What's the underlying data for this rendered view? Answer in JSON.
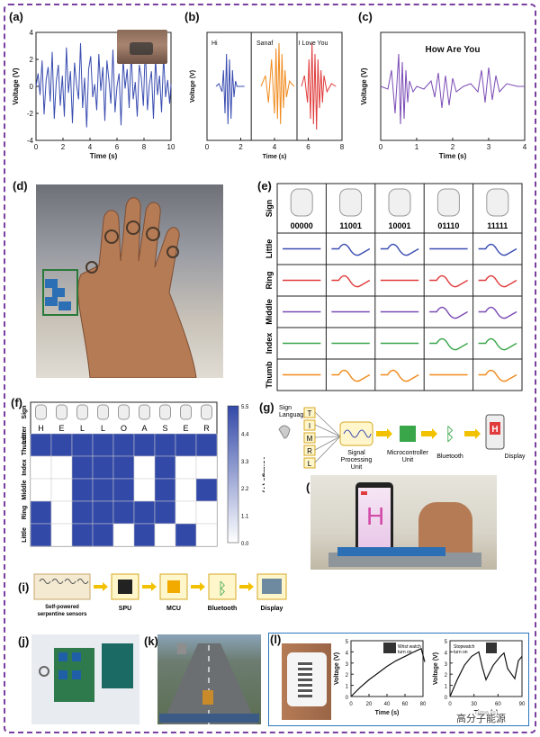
{
  "panels": {
    "a": {
      "label": "(a)"
    },
    "b": {
      "label": "(b)",
      "subtitles": [
        "Hi",
        "Sanaf",
        "I Love You"
      ]
    },
    "c": {
      "label": "(c)",
      "subtitle": "How Are You"
    },
    "d": {
      "label": "(d)"
    },
    "e": {
      "label": "(e)",
      "row_labels": [
        "Sign",
        "Little",
        "Ring",
        "Middle",
        "Index",
        "Thumb"
      ],
      "codes": [
        "00000",
        "11001",
        "10001",
        "01110",
        "11111"
      ]
    },
    "f": {
      "label": "(f)",
      "row_labels": [
        "Sign",
        "Letter",
        "Thumb",
        "Index",
        "Middle",
        "Ring",
        "Little"
      ],
      "letters": [
        "H",
        "E",
        "L",
        "L",
        "O",
        "A",
        "S",
        "E",
        "R"
      ],
      "colorbar_label": "Voltage (V)",
      "colorbar_ticks": [
        "5.5",
        "4.4",
        "3.3",
        "2.2",
        "1.1",
        "0.0"
      ]
    },
    "g": {
      "label": "(g)",
      "sign_language": "Sign\nLanguage",
      "finger_letters": [
        "T",
        "I",
        "M",
        "R",
        "L"
      ],
      "spu": "Signal\nProcessing\nUnit",
      "mcu": "Microcontroller\nUnit",
      "bluetooth": "Bluetooth",
      "display": "Display",
      "display_letter": "H"
    },
    "h": {
      "label": "(h)",
      "display_letter": "H"
    },
    "i": {
      "label": "(i)",
      "blocks": [
        "Self-powered\nserpentine sensors",
        "SPU",
        "MCU",
        "Bluetooth",
        "Display"
      ]
    },
    "j": {
      "label": "(j)"
    },
    "k": {
      "label": "(k)"
    },
    "l": {
      "label": "(l)",
      "annot1": "Wrist watch\nturn on",
      "annot2": "Stopwatch\nturn on"
    }
  },
  "watermark": "高分子能源",
  "chart_data": [
    {
      "panel": "a",
      "type": "line",
      "xlabel": "Time (s)",
      "ylabel": "Voltage (V)",
      "xlim": [
        0,
        10
      ],
      "ylim": [
        -5,
        5
      ],
      "xticks": [
        "0",
        "2",
        "4",
        "6",
        "8",
        "10"
      ],
      "yticks": [
        "-4",
        "-2",
        "0",
        "2",
        "4"
      ],
      "color": "#3a4db0",
      "x": [
        0,
        0.15,
        0.3,
        0.45,
        0.6,
        0.75,
        0.9,
        1.05,
        1.2,
        1.35,
        1.5,
        1.65,
        1.8,
        1.95,
        2.1,
        2.25,
        2.4,
        2.55,
        2.7,
        2.85,
        3.0,
        3.15,
        3.3,
        3.45,
        3.6,
        3.75,
        3.9,
        4.05,
        4.2,
        4.35,
        4.5,
        4.65,
        4.8,
        4.95,
        5.1,
        5.25,
        5.4,
        5.55,
        5.7,
        5.85,
        6.0,
        6.15,
        6.3,
        6.45,
        6.6,
        6.75,
        6.9,
        7.05,
        7.2,
        7.35,
        7.5,
        7.65,
        7.8,
        7.95,
        8.1,
        8.25,
        8.4,
        8.55,
        8.7,
        8.85,
        9.0,
        9.15,
        9.3,
        9.45,
        9.6,
        9.75,
        9.9,
        10.0
      ],
      "y": [
        0,
        1.2,
        -0.8,
        2.4,
        -2.6,
        0.6,
        1.8,
        -1.4,
        3.2,
        -3.0,
        0.4,
        2.0,
        -1.8,
        1.0,
        -2.8,
        3.6,
        -0.6,
        1.4,
        -3.4,
        2.2,
        0.2,
        -1.2,
        4.0,
        -2.0,
        0.8,
        -3.8,
        1.6,
        2.8,
        -1.0,
        0.2,
        -2.2,
        3.0,
        -0.4,
        1.8,
        -3.2,
        2.4,
        0.6,
        -1.6,
        3.4,
        -2.4,
        0.0,
        1.2,
        -3.6,
        2.6,
        -0.2,
        1.6,
        -2.0,
        3.2,
        -1.2,
        0.4,
        -2.8,
        2.0,
        0.8,
        -1.8,
        3.8,
        -2.2,
        0.2,
        1.4,
        -3.0,
        2.6,
        -0.8,
        1.0,
        -2.4,
        2.8,
        -1.0,
        0.6,
        -1.6,
        0.2
      ]
    },
    {
      "panel": "b",
      "type": "line",
      "xlabel": "Time (s)",
      "ylabel": "Voltage (V)",
      "xlim": [
        0,
        9
      ],
      "ylim": [
        -1,
        1
      ],
      "xticks": [
        "0",
        "2",
        "4",
        "6",
        "8"
      ],
      "series": [
        {
          "color": "#3a4db0",
          "x": [
            0.6,
            0.8,
            1.0,
            1.1,
            1.2,
            1.3,
            1.4,
            1.5,
            1.6,
            1.7,
            1.8,
            1.9,
            2.0,
            2.2,
            2.5
          ],
          "y": [
            0,
            0.05,
            -0.1,
            0.3,
            -0.5,
            0.6,
            -0.7,
            0.5,
            -0.6,
            0.3,
            -0.2,
            0.1,
            0,
            0,
            0
          ]
        },
        {
          "color": "#f08a1c",
          "x": [
            3.6,
            3.9,
            4.1,
            4.3,
            4.5,
            4.6,
            4.7,
            4.8,
            4.9,
            5.0,
            5.1,
            5.2,
            5.3,
            5.5,
            5.8
          ],
          "y": [
            0,
            0.2,
            -0.3,
            0.5,
            -0.5,
            0.7,
            -0.6,
            0.8,
            -0.7,
            0.6,
            -0.4,
            0.3,
            -0.2,
            0.1,
            0
          ]
        },
        {
          "color": "#e03c3c",
          "x": [
            6.3,
            6.5,
            6.7,
            6.8,
            6.9,
            7.0,
            7.1,
            7.2,
            7.3,
            7.4,
            7.5,
            7.6,
            7.7,
            7.8,
            8.0,
            8.3,
            8.6
          ],
          "y": [
            0,
            0.2,
            -0.3,
            0.5,
            -0.6,
            0.8,
            -0.7,
            0.6,
            -0.8,
            0.5,
            -0.4,
            0.3,
            -0.3,
            0.2,
            -0.1,
            0.05,
            0
          ]
        }
      ]
    },
    {
      "panel": "c",
      "type": "line",
      "xlabel": "Time (s)",
      "ylabel": "Voltage (V)",
      "xlim": [
        0,
        4
      ],
      "ylim": [
        -1,
        1
      ],
      "xticks": [
        "0",
        "1",
        "2",
        "3",
        "4"
      ],
      "color": "#7b4bb5",
      "x": [
        0,
        0.2,
        0.3,
        0.4,
        0.5,
        0.55,
        0.6,
        0.65,
        0.7,
        0.75,
        0.8,
        0.9,
        1.0,
        1.2,
        1.4,
        1.5,
        1.6,
        1.7,
        1.8,
        1.9,
        2.0,
        2.1,
        2.3,
        2.5,
        2.7,
        2.8,
        2.9,
        3.0,
        3.1,
        3.2,
        3.3,
        3.5,
        3.8,
        4.0
      ],
      "y": [
        0,
        -0.05,
        0.3,
        -0.5,
        0.6,
        -0.7,
        0.45,
        -0.6,
        0.3,
        -0.3,
        0.1,
        -0.1,
        0,
        -0.05,
        0.1,
        -0.2,
        0.25,
        -0.4,
        0.2,
        -0.35,
        0.15,
        -0.1,
        0,
        0.05,
        -0.1,
        0.3,
        -0.3,
        0.35,
        -0.25,
        0.2,
        -0.1,
        0.05,
        0,
        0
      ]
    },
    {
      "panel": "e",
      "type": "line",
      "x_axis_ticks": [
        "0.0",
        "0.8",
        "1.6",
        "2.4",
        "3.2",
        "4.0"
      ],
      "rows": [
        "Little",
        "Ring",
        "Middle",
        "Index",
        "Thumb"
      ],
      "row_colors": [
        "#3a4db0",
        "#e03c3c",
        "#7b4bb5",
        "#3aa64a",
        "#f08a1c"
      ],
      "active": [
        [
          0,
          1,
          1,
          0,
          1
        ],
        [
          0,
          1,
          0,
          1,
          1
        ],
        [
          0,
          0,
          0,
          1,
          1
        ],
        [
          0,
          0,
          0,
          1,
          1
        ],
        [
          0,
          1,
          1,
          0,
          1
        ]
      ]
    },
    {
      "panel": "f",
      "type": "heatmap",
      "rows": [
        "Thumb",
        "Index",
        "Middle",
        "Ring",
        "Little"
      ],
      "columns": [
        "H",
        "E",
        "L",
        "L",
        "O",
        "A",
        "S",
        "E",
        "R"
      ],
      "values": [
        [
          1,
          1,
          1,
          1,
          1,
          1,
          1,
          1,
          1
        ],
        [
          0,
          0,
          1,
          1,
          1,
          0,
          1,
          0,
          0
        ],
        [
          0,
          0,
          1,
          1,
          1,
          0,
          1,
          0,
          1
        ],
        [
          1,
          0,
          1,
          1,
          1,
          1,
          1,
          0,
          0
        ],
        [
          1,
          0,
          1,
          1,
          0,
          1,
          0,
          1,
          0
        ]
      ],
      "colorbar_range": [
        0.0,
        5.5
      ]
    },
    {
      "panel": "l-1",
      "type": "line",
      "xlabel": "Time (s)",
      "ylabel": "Voltage (V)",
      "xlim": [
        0,
        80
      ],
      "ylim": [
        0,
        5
      ],
      "xticks": [
        "0",
        "20",
        "40",
        "60",
        "80"
      ],
      "yticks": [
        "0",
        "1",
        "2",
        "3",
        "4",
        "5"
      ],
      "x": [
        0,
        10,
        20,
        30,
        40,
        50,
        60,
        70,
        78,
        82
      ],
      "y": [
        0,
        0.8,
        1.5,
        2.1,
        2.7,
        3.2,
        3.6,
        4.0,
        4.3,
        3.1
      ]
    },
    {
      "panel": "l-2",
      "type": "line",
      "xlabel": "Time (s)",
      "ylabel": "Voltage (V)",
      "xlim": [
        0,
        100
      ],
      "ylim": [
        0,
        5
      ],
      "xticks": [
        "0",
        "30",
        "60",
        "90"
      ],
      "yticks": [
        "0",
        "1",
        "2",
        "3",
        "4",
        "5"
      ],
      "x": [
        0,
        10,
        20,
        30,
        40,
        45,
        50,
        60,
        70,
        75,
        80,
        90,
        95,
        100
      ],
      "y": [
        0,
        1.5,
        2.8,
        3.6,
        4.0,
        2.6,
        1.5,
        2.8,
        3.6,
        3.9,
        2.5,
        1.6,
        3.2,
        3.6
      ]
    }
  ]
}
